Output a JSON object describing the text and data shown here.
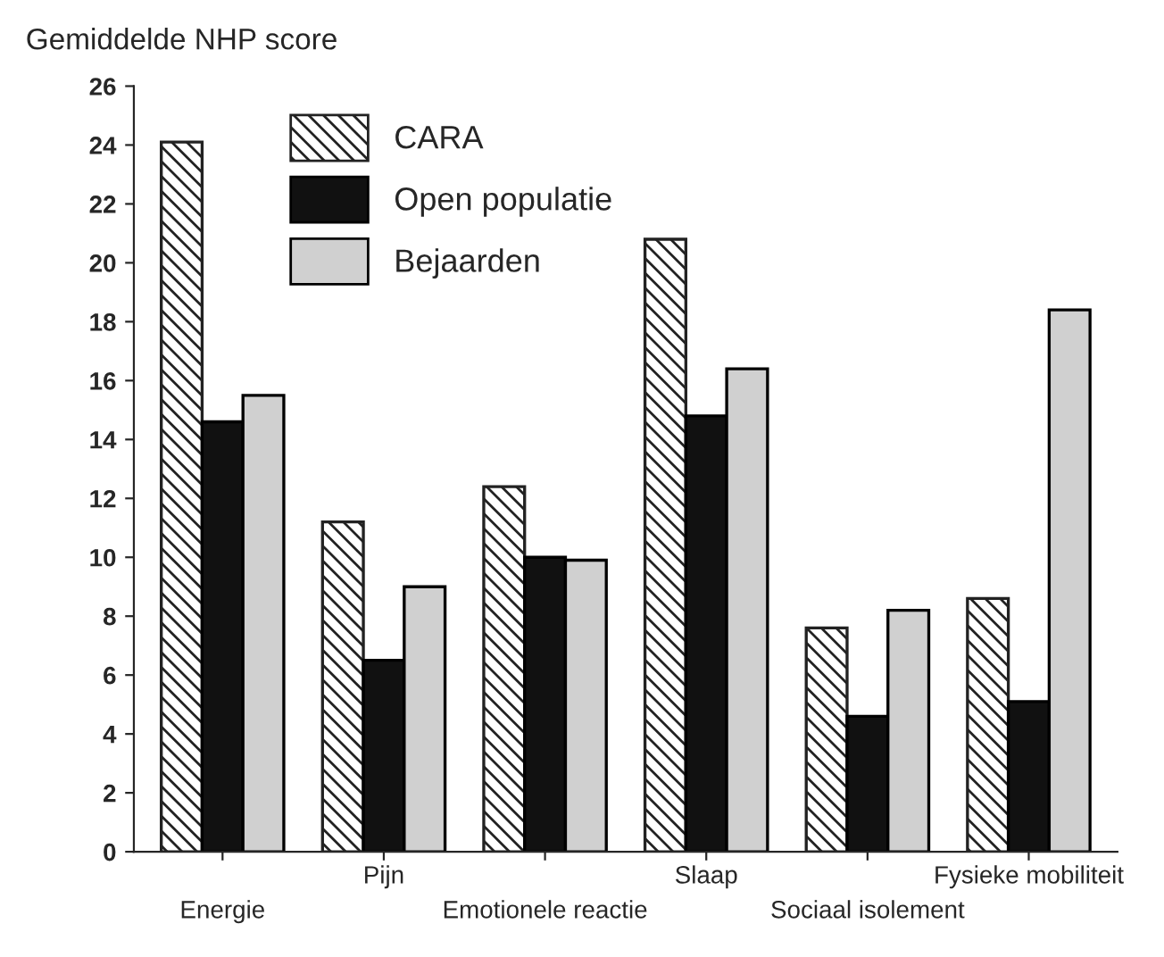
{
  "chart_data": {
    "type": "bar",
    "ylabel": "Gemiddelde NHP score",
    "categories": [
      "Energie",
      "Pijn",
      "Emotionele reactie",
      "Slaap",
      "Sociaal isolement",
      "Fysieke mobiliteit"
    ],
    "series": [
      {
        "name": "CARA",
        "color": "#222222",
        "values": [
          24.1,
          11.2,
          12.4,
          20.8,
          7.6,
          8.6
        ]
      },
      {
        "name": "Open populatie",
        "color": "#111111",
        "values": [
          14.6,
          6.5,
          10.0,
          14.8,
          4.6,
          5.1
        ]
      },
      {
        "name": "Bejaarden",
        "color": "#d0d0d0",
        "values": [
          15.5,
          9.0,
          9.9,
          16.4,
          8.2,
          18.4
        ]
      }
    ],
    "ylim": [
      0,
      26
    ],
    "yticks": [
      0,
      2,
      4,
      6,
      8,
      10,
      12,
      14,
      16,
      18,
      20,
      22,
      24,
      26
    ],
    "grid": false,
    "legend": "top left"
  }
}
